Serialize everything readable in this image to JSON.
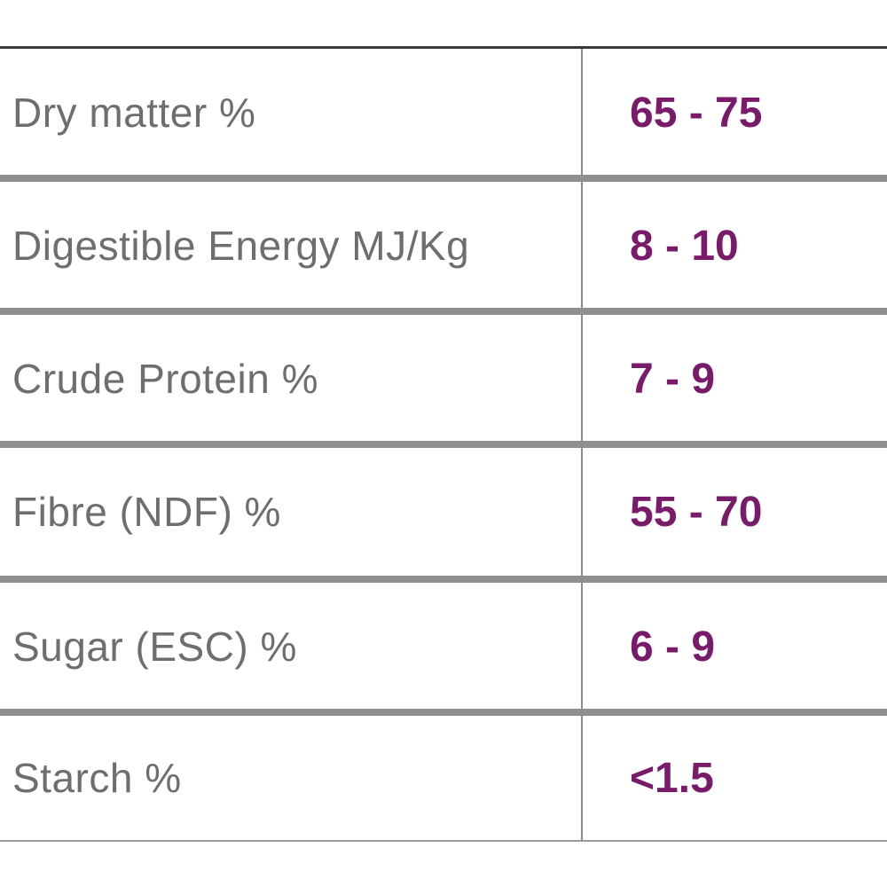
{
  "table": {
    "rows": [
      {
        "label": "Dry matter %",
        "value": "65 - 75"
      },
      {
        "label": "Digestible Energy MJ/Kg",
        "value": "8 - 10"
      },
      {
        "label": "Crude Protein %",
        "value": "7 - 9"
      },
      {
        "label": "Fibre (NDF) %",
        "value": "55 - 70"
      },
      {
        "label": "Sugar (ESC) %",
        "value": "6 - 9"
      },
      {
        "label": "Starch %",
        "value": "<1.5"
      }
    ]
  },
  "colors": {
    "label_text": "#6e6e6e",
    "value_text": "#7a1a6a",
    "rule": "#8f8f8f"
  }
}
